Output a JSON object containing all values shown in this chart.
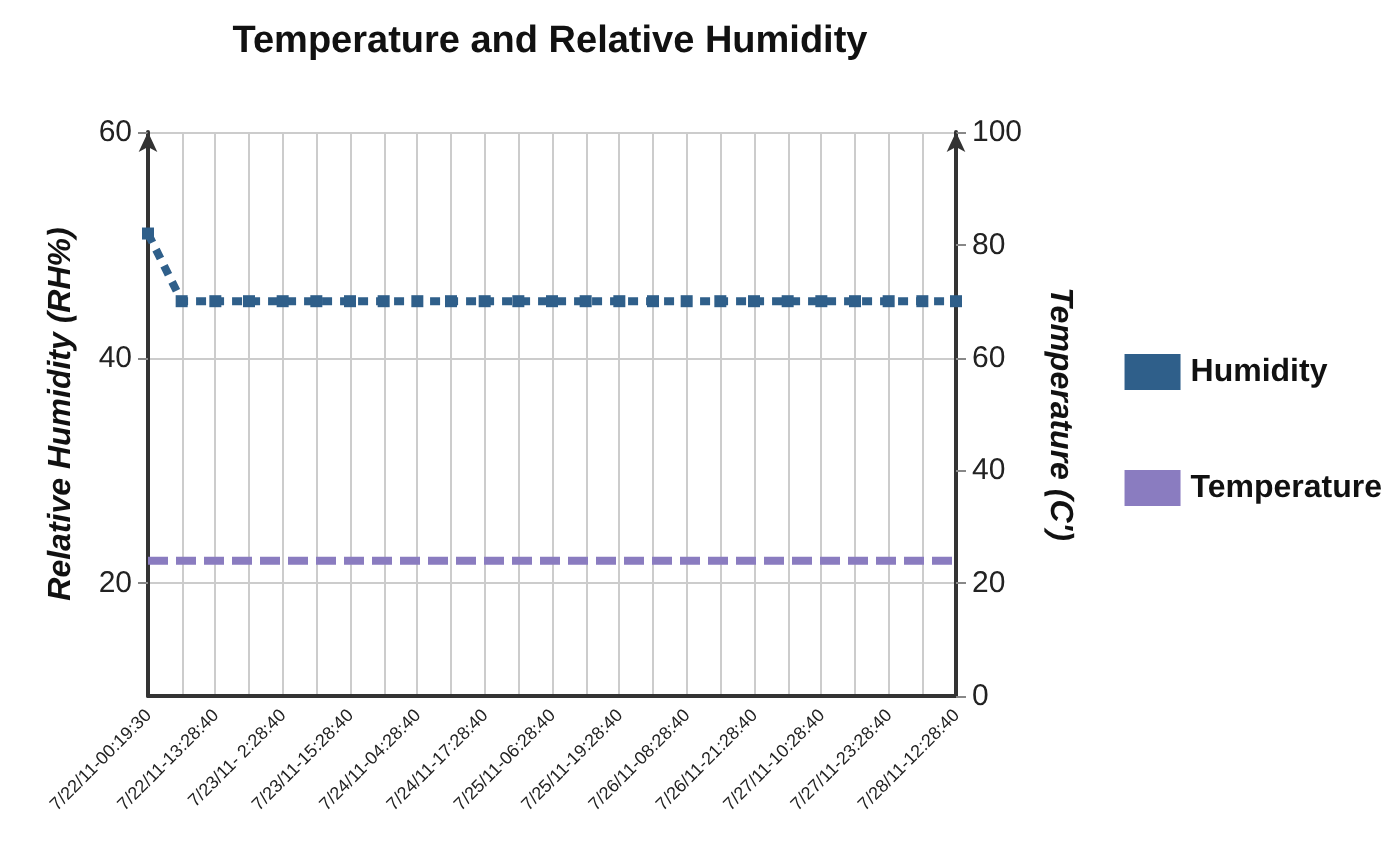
{
  "chart_data": {
    "type": "line",
    "title": "Temperature and Relative Humidity",
    "categories": [
      "7/22/11-00:19:30",
      null,
      "7/22/11-13:28:40",
      null,
      "7/23/11- 2:28:40",
      null,
      "7/23/11-15:28:40",
      null,
      "7/24/11-04:28:40",
      null,
      "7/24/11-17:28:40",
      null,
      "7/25/11-06:28:40",
      null,
      "7/25/11-19:28:40",
      null,
      "7/26/11-08:28:40",
      null,
      "7/26/11-21:28:40",
      null,
      "7/27/11-10:28:40",
      null,
      "7/27/11-23:28:40",
      null,
      "7/28/11-12:28:40"
    ],
    "series": [
      {
        "name": "Humidity",
        "color": "#2f5f8a",
        "marker": "square",
        "line_style": "dotted",
        "values": [
          51,
          45,
          45,
          45,
          45,
          45,
          45,
          45,
          45,
          45,
          45,
          45,
          45,
          45,
          45,
          45,
          45,
          45,
          45,
          45,
          45,
          45,
          45,
          45,
          45
        ]
      },
      {
        "name": "Temperature",
        "color": "#8a7cc0",
        "marker": "none",
        "line_style": "dashed",
        "axis": "y2",
        "values": [
          24,
          24,
          24,
          24,
          24,
          24,
          24,
          24,
          24,
          24,
          24,
          24,
          24,
          24,
          24,
          24,
          24,
          24,
          24,
          24,
          24,
          24,
          24,
          24,
          24
        ]
      }
    ],
    "ylabel": "Relative Humidity (RH%)",
    "y2label": "Temperature (C')",
    "ylim": [
      10,
      60
    ],
    "yticks": [
      20,
      40,
      60
    ],
    "y2lim": [
      0,
      100
    ],
    "y2ticks": [
      0,
      20,
      40,
      60,
      80,
      100
    ],
    "grid": true,
    "legend": "right"
  }
}
